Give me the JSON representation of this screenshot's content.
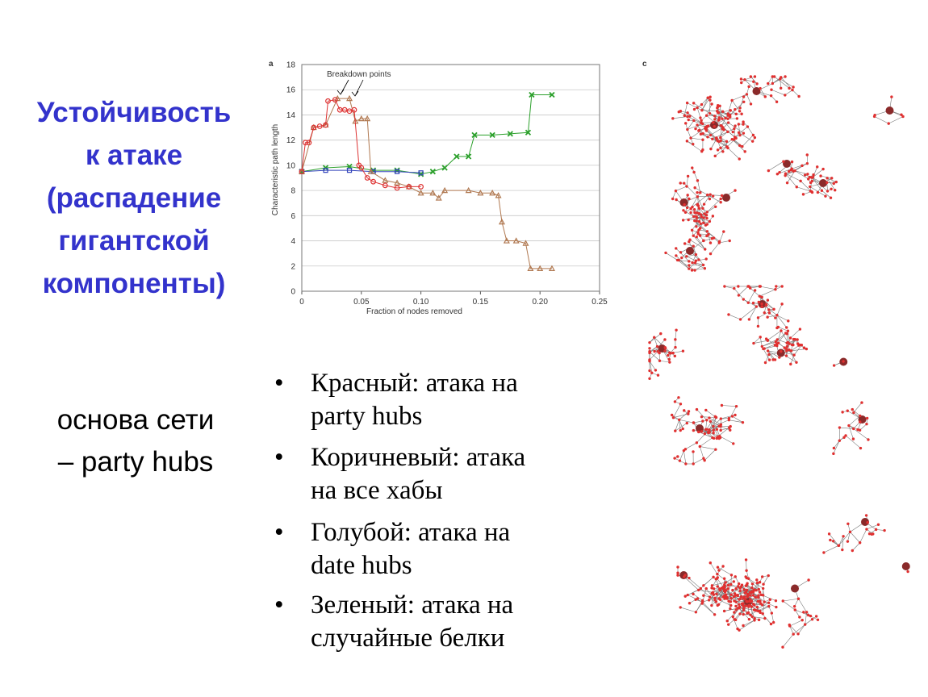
{
  "slide": {
    "title_lines": [
      "Устойчивость",
      "к атаке",
      "(распадение",
      "гигантской",
      "компоненты)"
    ],
    "subtitle_lines": [
      "основа сети",
      "– party hubs"
    ],
    "bullets": [
      [
        "Красный: атака на",
        "party hubs"
      ],
      [
        "Коричневый: атака",
        "на все хабы"
      ],
      [
        "Голубой: атака на",
        "date hubs"
      ],
      [
        "Зеленый: атака на",
        "случайные белки"
      ]
    ],
    "bullet_symbol": "•",
    "network_panel_label": "c"
  },
  "chart_data": {
    "type": "line",
    "panel_label": "a",
    "annotation": "Breakdown points",
    "xlabel": "Fraction of nodes removed",
    "ylabel": "Characteristic path length",
    "xlim": [
      0,
      0.25
    ],
    "ylim": [
      0,
      18
    ],
    "xticks": [
      0,
      0.05,
      {
        "value": 0.1,
        "label": "0.10"
      },
      0.15,
      {
        "value": 0.2,
        "label": "0.20"
      },
      0.25
    ],
    "yticks": [
      0,
      2,
      4,
      6,
      8,
      10,
      12,
      14,
      16,
      18
    ],
    "grid": true,
    "series": [
      {
        "color": "#2ca02c",
        "marker": "x",
        "x": [
          0,
          0.02,
          0.04,
          0.06,
          0.08,
          0.1,
          0.11,
          0.12,
          0.13,
          0.14,
          0.145,
          0.16,
          0.175,
          0.19,
          0.193,
          0.21
        ],
        "values": [
          9.5,
          9.8,
          9.9,
          9.6,
          9.6,
          9.3,
          9.5,
          9.8,
          10.7,
          10.7,
          12.4,
          12.4,
          12.5,
          12.6,
          15.6,
          15.6
        ]
      },
      {
        "color": "#3344bb",
        "marker": "square",
        "x": [
          0,
          0.02,
          0.04,
          0.06,
          0.08,
          0.1
        ],
        "values": [
          9.5,
          9.6,
          9.6,
          9.5,
          9.5,
          9.4
        ]
      },
      {
        "color": "#b07850",
        "marker": "triangle",
        "x": [
          0,
          0.01,
          0.02,
          0.03,
          0.04,
          0.045,
          0.05,
          0.055,
          0.058,
          0.07,
          0.08,
          0.09,
          0.1,
          0.11,
          0.115,
          0.12,
          0.14,
          0.15,
          0.16,
          0.165,
          0.168,
          0.172,
          0.18,
          0.188,
          0.192,
          0.2,
          0.21
        ],
        "values": [
          9.5,
          13.0,
          13.2,
          15.3,
          15.3,
          13.5,
          13.7,
          13.7,
          9.5,
          8.8,
          8.6,
          8.3,
          7.8,
          7.8,
          7.4,
          8.0,
          8.0,
          7.8,
          7.8,
          7.6,
          5.5,
          4.0,
          4.0,
          3.8,
          1.8,
          1.8,
          1.8
        ]
      },
      {
        "color": "#dd3333",
        "marker": "circle",
        "x": [
          0,
          0.003,
          0.006,
          0.01,
          0.015,
          0.02,
          0.022,
          0.028,
          0.032,
          0.036,
          0.04,
          0.044,
          0.048,
          0.05,
          0.055,
          0.06,
          0.07,
          0.08,
          0.09,
          0.1
        ],
        "values": [
          9.5,
          11.8,
          11.8,
          13.0,
          13.1,
          13.2,
          15.1,
          15.2,
          14.4,
          14.4,
          14.3,
          14.4,
          10.0,
          9.8,
          9.0,
          8.7,
          8.4,
          8.2,
          8.3,
          8.3
        ]
      }
    ]
  }
}
